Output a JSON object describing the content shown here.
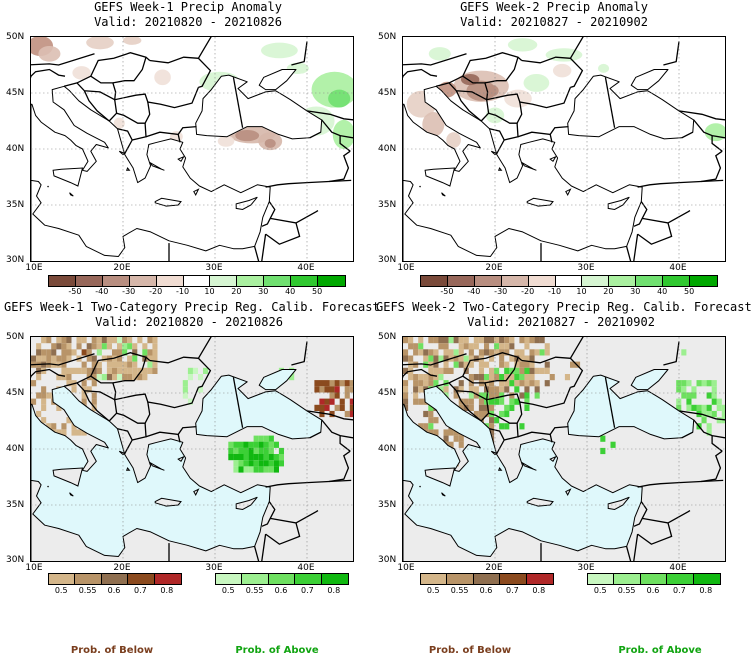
{
  "panels": [
    {
      "title": "GEFS Week-1 Precip Anomaly",
      "valid": "Valid: 20210820 - 20210826"
    },
    {
      "title": "GEFS Week-2 Precip Anomaly",
      "valid": "Valid: 20210827 - 20210902"
    },
    {
      "title": "GEFS Week-1 Two-Category Precip Reg. Calib. Forecast",
      "valid": "Valid: 20210820 - 20210826"
    },
    {
      "title": "GEFS Week-2 Two-Category Precip Reg. Calib. Forecast",
      "valid": "Valid: 20210827 - 20210902"
    }
  ],
  "lat_labels": [
    "50N",
    "45N",
    "40N",
    "35N",
    "30N"
  ],
  "lon_labels": [
    "10E",
    "20E",
    "30E",
    "40E"
  ],
  "anomaly_colorbar": {
    "labels": [
      "-50",
      "-40",
      "-30",
      "-20",
      "-10",
      "10",
      "20",
      "30",
      "40",
      "50"
    ],
    "colors": [
      "#7a4a3a",
      "#97675a",
      "#b88e80",
      "#d6b7aa",
      "#f0dcd2",
      "#ffffff",
      "#d6f5d2",
      "#aaf0a0",
      "#70e070",
      "#30c830",
      "#00a800"
    ]
  },
  "below_colorbar": {
    "labels": [
      "0.5",
      "0.55",
      "0.6",
      "0.7",
      "0.8"
    ],
    "colors": [
      "#d4b68a",
      "#b89468",
      "#8f6f50",
      "#8b4a1e",
      "#b02828"
    ],
    "name": "Prob. of Below"
  },
  "above_colorbar": {
    "labels": [
      "0.5",
      "0.55",
      "0.6",
      "0.7",
      "0.8"
    ],
    "colors": [
      "#c8f7c0",
      "#9cef90",
      "#6ee060",
      "#3cd036",
      "#10b810"
    ],
    "name": "Prob. of Above"
  },
  "colors": {
    "sea_prob": "#dff8fb",
    "land_prob": "#ececec",
    "name_below": "#7a3e1e",
    "name_above": "#11a411"
  }
}
